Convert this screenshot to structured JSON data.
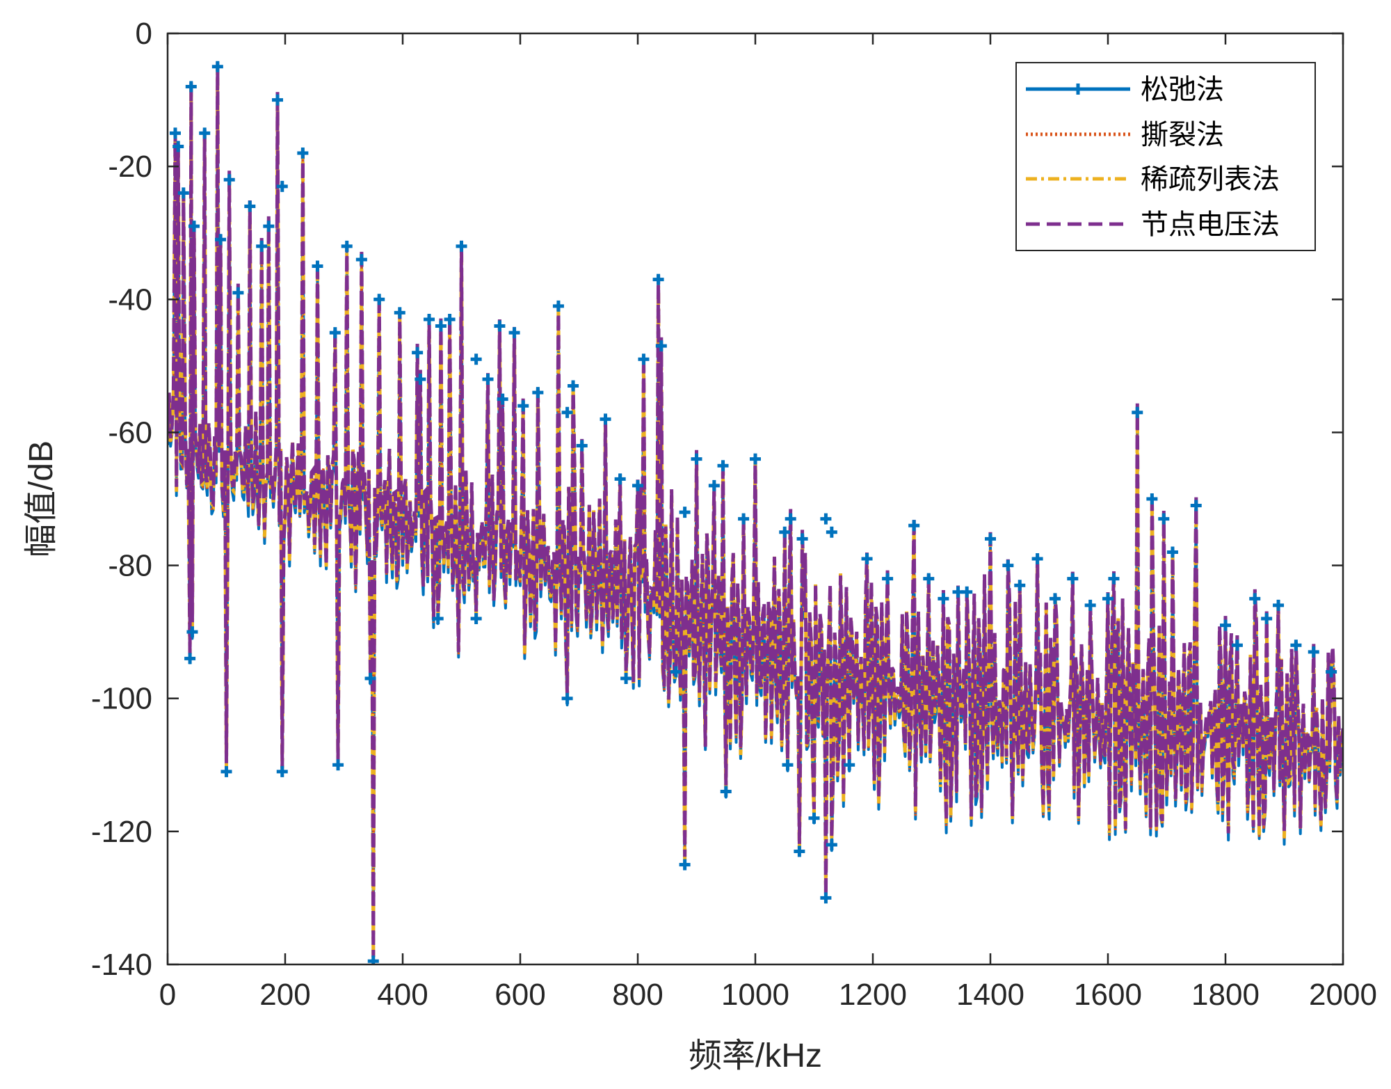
{
  "chart_data": {
    "type": "line",
    "title": "",
    "xlabel": "频率/kHz",
    "ylabel": "幅值/dB",
    "xlim": [
      0,
      2000
    ],
    "ylim": [
      -140,
      0
    ],
    "xticks": [
      0,
      200,
      400,
      600,
      800,
      1000,
      1200,
      1400,
      1600,
      1800,
      2000
    ],
    "yticks": [
      0,
      -20,
      -40,
      -60,
      -80,
      -100,
      -120,
      -140
    ],
    "grid": false,
    "legend_position": "top-right",
    "series": [
      {
        "name": "松弛法",
        "color": "#0072BD",
        "style": "solid-marker"
      },
      {
        "name": "撕裂法",
        "color": "#D95319",
        "style": "dotted"
      },
      {
        "name": "稀疏列表法",
        "color": "#EDB120",
        "style": "dash-dot"
      },
      {
        "name": "节点电压法",
        "color": "#7E2F8E",
        "style": "dashed"
      }
    ],
    "baseline": [
      [
        0,
        -60
      ],
      [
        100,
        -67
      ],
      [
        200,
        -69
      ],
      [
        300,
        -71
      ],
      [
        400,
        -74
      ],
      [
        500,
        -77
      ],
      [
        600,
        -79
      ],
      [
        700,
        -82
      ],
      [
        800,
        -85
      ],
      [
        900,
        -89
      ],
      [
        1000,
        -93
      ],
      [
        1100,
        -96
      ],
      [
        1200,
        -99
      ],
      [
        1300,
        -101
      ],
      [
        1400,
        -102
      ],
      [
        1500,
        -103
      ],
      [
        1600,
        -104
      ],
      [
        1700,
        -105
      ],
      [
        1800,
        -106
      ],
      [
        1900,
        -107
      ],
      [
        2000,
        -109
      ]
    ],
    "peaks": [
      [
        13,
        -15
      ],
      [
        18,
        -17
      ],
      [
        27,
        -24
      ],
      [
        40,
        -8
      ],
      [
        45,
        -29
      ],
      [
        63,
        -15
      ],
      [
        85,
        -5
      ],
      [
        90,
        -31
      ],
      [
        105,
        -22
      ],
      [
        120,
        -39
      ],
      [
        140,
        -26
      ],
      [
        160,
        -32
      ],
      [
        172,
        -29
      ],
      [
        187,
        -10
      ],
      [
        195,
        -23
      ],
      [
        230,
        -18
      ],
      [
        255,
        -35
      ],
      [
        285,
        -45
      ],
      [
        305,
        -32
      ],
      [
        330,
        -34
      ],
      [
        360,
        -40
      ],
      [
        395,
        -42
      ],
      [
        425,
        -48
      ],
      [
        430,
        -52
      ],
      [
        445,
        -43
      ],
      [
        465,
        -44
      ],
      [
        480,
        -43
      ],
      [
        500,
        -32
      ],
      [
        525,
        -49
      ],
      [
        545,
        -52
      ],
      [
        565,
        -44
      ],
      [
        570,
        -55
      ],
      [
        590,
        -45
      ],
      [
        605,
        -56
      ],
      [
        630,
        -54
      ],
      [
        665,
        -41
      ],
      [
        680,
        -57
      ],
      [
        690,
        -53
      ],
      [
        705,
        -62
      ],
      [
        745,
        -58
      ],
      [
        770,
        -67
      ],
      [
        800,
        -68
      ],
      [
        810,
        -49
      ],
      [
        835,
        -37
      ],
      [
        840,
        -47
      ],
      [
        880,
        -72
      ],
      [
        900,
        -64
      ],
      [
        930,
        -68
      ],
      [
        945,
        -65
      ],
      [
        980,
        -73
      ],
      [
        1000,
        -64
      ],
      [
        1050,
        -75
      ],
      [
        1060,
        -73
      ],
      [
        1080,
        -76
      ],
      [
        1120,
        -73
      ],
      [
        1130,
        -75
      ],
      [
        1190,
        -79
      ],
      [
        1225,
        -82
      ],
      [
        1270,
        -74
      ],
      [
        1295,
        -82
      ],
      [
        1320,
        -85
      ],
      [
        1345,
        -84
      ],
      [
        1360,
        -84
      ],
      [
        1400,
        -76
      ],
      [
        1430,
        -80
      ],
      [
        1450,
        -83
      ],
      [
        1480,
        -79
      ],
      [
        1510,
        -85
      ],
      [
        1540,
        -82
      ],
      [
        1570,
        -86
      ],
      [
        1600,
        -85
      ],
      [
        1610,
        -82
      ],
      [
        1650,
        -57
      ],
      [
        1675,
        -70
      ],
      [
        1695,
        -73
      ],
      [
        1710,
        -78
      ],
      [
        1750,
        -71
      ],
      [
        1800,
        -89
      ],
      [
        1820,
        -92
      ],
      [
        1850,
        -85
      ],
      [
        1870,
        -88
      ],
      [
        1890,
        -86
      ],
      [
        1920,
        -92
      ],
      [
        1950,
        -93
      ],
      [
        1980,
        -96
      ]
    ],
    "dips": [
      [
        38,
        -94
      ],
      [
        42,
        -90
      ],
      [
        100,
        -111
      ],
      [
        195,
        -111
      ],
      [
        290,
        -110
      ],
      [
        345,
        -97
      ],
      [
        350,
        -140
      ],
      [
        460,
        -88
      ],
      [
        525,
        -88
      ],
      [
        680,
        -100
      ],
      [
        780,
        -97
      ],
      [
        865,
        -96
      ],
      [
        880,
        -125
      ],
      [
        950,
        -114
      ],
      [
        1055,
        -110
      ],
      [
        1075,
        -123
      ],
      [
        1100,
        -118
      ],
      [
        1120,
        -130
      ],
      [
        1130,
        -122
      ],
      [
        1160,
        -110
      ]
    ]
  },
  "colors": {
    "axis": "#262626",
    "series_1": "#0072BD",
    "series_2": "#D95319",
    "series_3": "#EDB120",
    "series_4": "#7E2F8E"
  }
}
